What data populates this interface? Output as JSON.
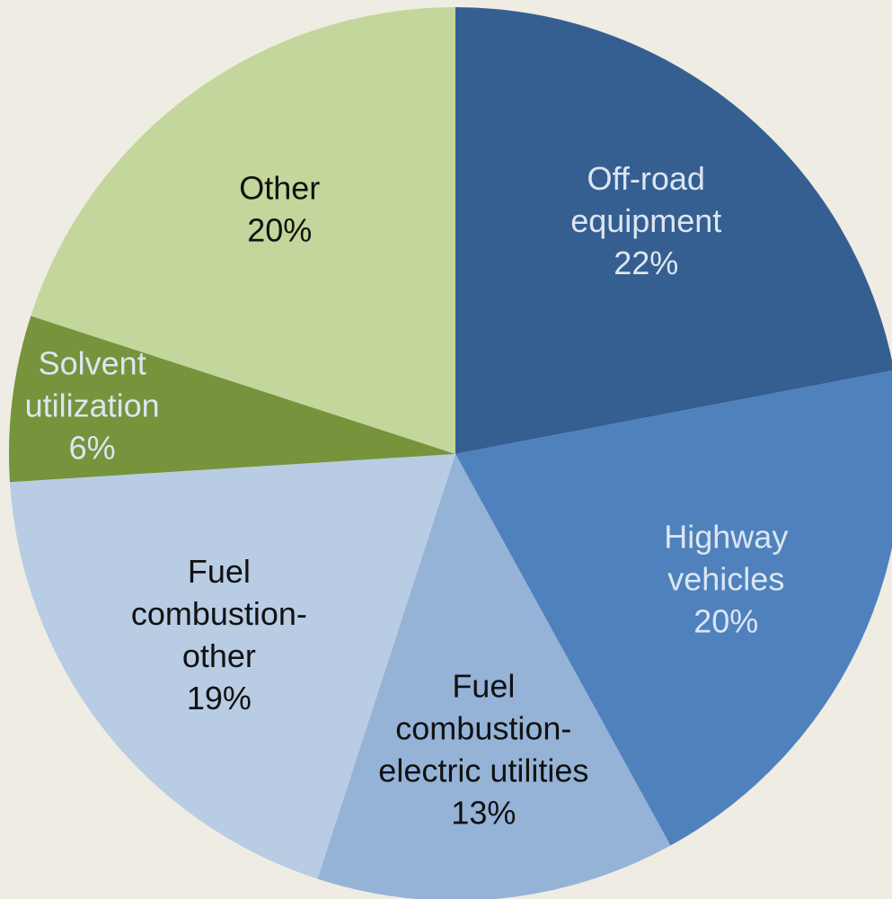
{
  "chart_data": {
    "type": "pie",
    "categories": [
      [
        "Off-road",
        "equipment"
      ],
      [
        "Highway",
        "vehicles"
      ],
      [
        "Fuel",
        "combustion-",
        "electric utilities"
      ],
      [
        "Fuel",
        "combustion-",
        "other"
      ],
      [
        "Solvent",
        "utilization"
      ],
      [
        "Other"
      ]
    ],
    "values": [
      22,
      20,
      13,
      19,
      6,
      20
    ],
    "value_labels": [
      "22%",
      "20%",
      "13%",
      "19%",
      "6%",
      "20%"
    ],
    "colors": [
      "#365f91",
      "#4f81bd",
      "#95b3d7",
      "#b8cce4",
      "#77933c",
      "#c3d69b"
    ]
  }
}
